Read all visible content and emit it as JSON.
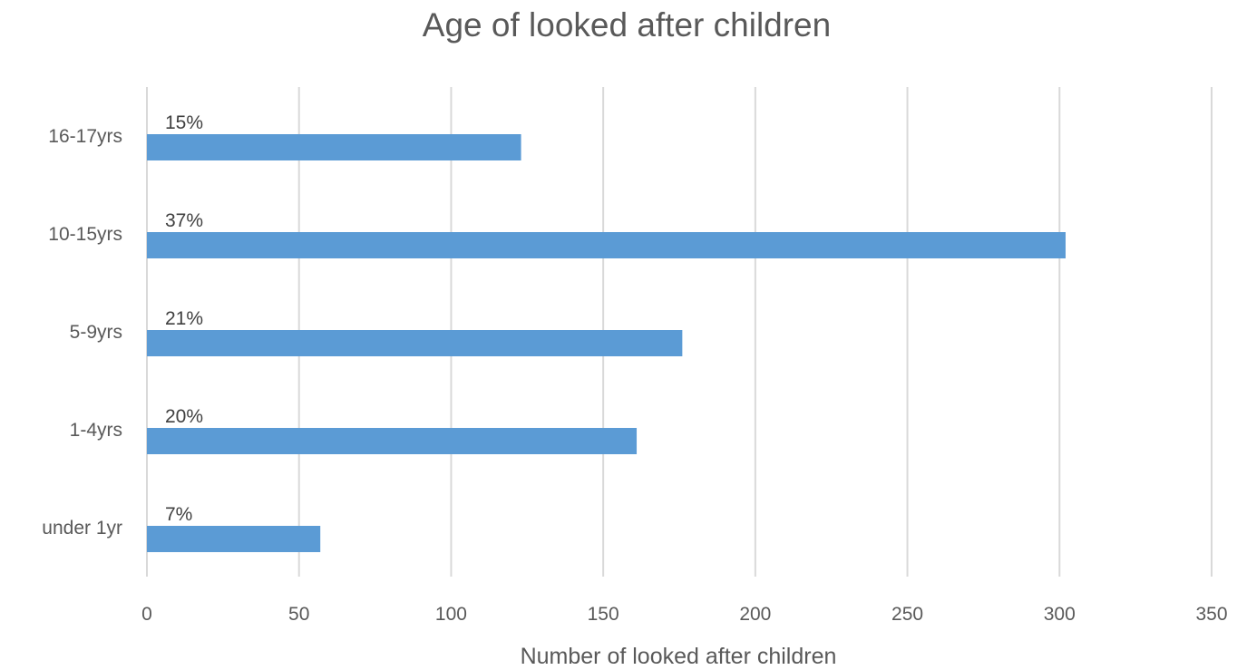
{
  "chart_data": {
    "type": "bar",
    "orientation": "horizontal",
    "title": "Age of looked after children",
    "xlabel": "Number of looked after children",
    "ylabel": "",
    "categories": [
      "under 1yr",
      "1-4yrs",
      "5-9yrs",
      "10-15yrs",
      "16-17yrs"
    ],
    "values": [
      57,
      161,
      176,
      302,
      123
    ],
    "data_labels": [
      "7%",
      "20%",
      "21%",
      "37%",
      "15%"
    ],
    "xlim": [
      0,
      350
    ],
    "xticks": [
      "0",
      "50",
      "100",
      "150",
      "200",
      "250",
      "300",
      "350"
    ],
    "grid": true,
    "legend": "none",
    "bar_color": "#5b9bd5"
  }
}
